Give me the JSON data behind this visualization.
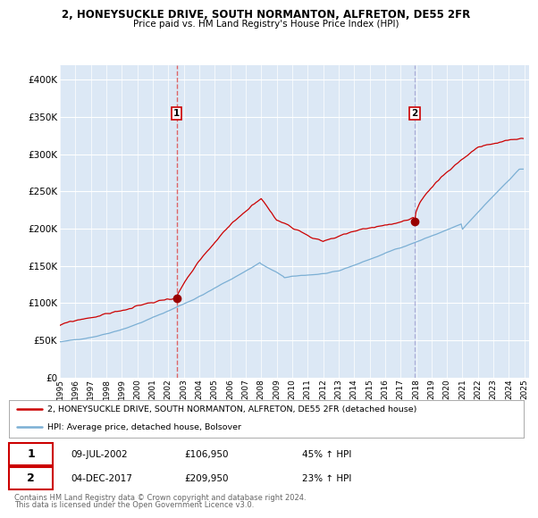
{
  "title_line1": "2, HONEYSUCKLE DRIVE, SOUTH NORMANTON, ALFRETON, DE55 2FR",
  "title_line2": "Price paid vs. HM Land Registry's House Price Index (HPI)",
  "ylim": [
    0,
    420000
  ],
  "yticks": [
    0,
    50000,
    100000,
    150000,
    200000,
    250000,
    300000,
    350000,
    400000
  ],
  "ytick_labels": [
    "£0",
    "£50K",
    "£100K",
    "£150K",
    "£200K",
    "£250K",
    "£300K",
    "£350K",
    "£400K"
  ],
  "xtick_years": [
    1995,
    1996,
    1997,
    1998,
    1999,
    2000,
    2001,
    2002,
    2003,
    2004,
    2005,
    2006,
    2007,
    2008,
    2009,
    2010,
    2011,
    2012,
    2013,
    2014,
    2015,
    2016,
    2017,
    2018,
    2019,
    2020,
    2021,
    2022,
    2023,
    2024,
    2025
  ],
  "hpi_color": "#7bafd4",
  "price_color": "#cc0000",
  "marker_color": "#990000",
  "bg_color": "#dce8f5",
  "grid_color": "#ffffff",
  "vline1_color": "#dd4444",
  "vline2_color": "#9999cc",
  "sale1_year": 2002.54,
  "sale1_price": 106950,
  "sale2_year": 2017.92,
  "sale2_price": 209950,
  "legend_line1": "2, HONEYSUCKLE DRIVE, SOUTH NORMANTON, ALFRETON, DE55 2FR (detached house)",
  "legend_line2": "HPI: Average price, detached house, Bolsover",
  "footer_line1": "Contains HM Land Registry data © Crown copyright and database right 2024.",
  "footer_line2": "This data is licensed under the Open Government Licence v3.0.",
  "table_row1": [
    "1",
    "09-JUL-2002",
    "£106,950",
    "45% ↑ HPI"
  ],
  "table_row2": [
    "2",
    "04-DEC-2017",
    "£209,950",
    "23% ↑ HPI"
  ]
}
